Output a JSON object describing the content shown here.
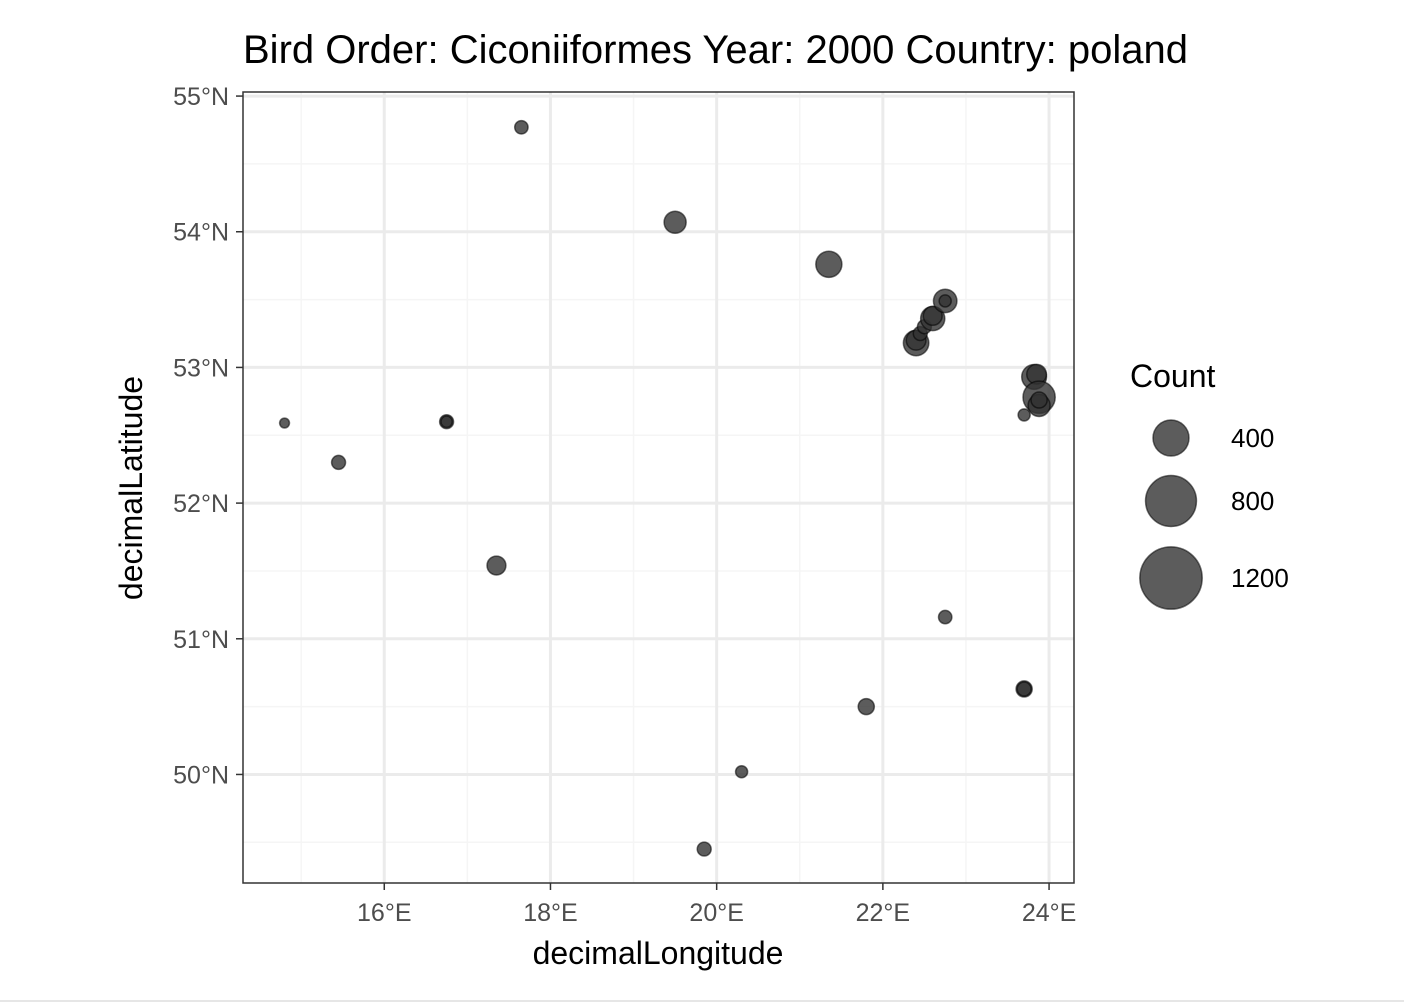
{
  "chart_data": {
    "type": "scatter",
    "title": "Bird Order: Ciconiiformes Year: 2000 Country: poland",
    "xlabel": "decimalLongitude",
    "ylabel": "decimalLatitude",
    "xlim": [
      14.3,
      24.3
    ],
    "ylim": [
      49.2,
      55.03
    ],
    "x_ticks": [
      16,
      18,
      20,
      22,
      24
    ],
    "x_tick_labels": [
      "16°E",
      "18°E",
      "20°E",
      "22°E",
      "24°E"
    ],
    "y_ticks": [
      50,
      51,
      52,
      53,
      54,
      55
    ],
    "y_tick_labels": [
      "50°N",
      "51°N",
      "52°N",
      "53°N",
      "54°N",
      "55°N"
    ],
    "grid": true,
    "point_color": "#333333",
    "point_opacity": 0.8,
    "legend": {
      "title": "Count",
      "placement": "right",
      "entries": [
        {
          "label": "400",
          "value": 400
        },
        {
          "label": "800",
          "value": 800
        },
        {
          "label": "1200",
          "value": 1200
        }
      ]
    },
    "points": [
      {
        "x": 14.8,
        "y": 52.59,
        "count": 30
      },
      {
        "x": 15.45,
        "y": 52.3,
        "count": 60
      },
      {
        "x": 16.75,
        "y": 52.6,
        "count": 60
      },
      {
        "x": 16.75,
        "y": 52.6,
        "count": 40
      },
      {
        "x": 17.35,
        "y": 51.54,
        "count": 110
      },
      {
        "x": 17.65,
        "y": 54.77,
        "count": 55
      },
      {
        "x": 19.5,
        "y": 54.07,
        "count": 150
      },
      {
        "x": 19.85,
        "y": 49.45,
        "count": 60
      },
      {
        "x": 20.3,
        "y": 50.02,
        "count": 45
      },
      {
        "x": 21.35,
        "y": 53.76,
        "count": 210
      },
      {
        "x": 21.8,
        "y": 50.5,
        "count": 80
      },
      {
        "x": 22.4,
        "y": 53.18,
        "count": 200
      },
      {
        "x": 22.4,
        "y": 53.2,
        "count": 120
      },
      {
        "x": 22.45,
        "y": 53.25,
        "count": 60
      },
      {
        "x": 22.5,
        "y": 53.3,
        "count": 60
      },
      {
        "x": 22.6,
        "y": 53.36,
        "count": 180
      },
      {
        "x": 22.6,
        "y": 53.38,
        "count": 110
      },
      {
        "x": 22.75,
        "y": 53.49,
        "count": 170
      },
      {
        "x": 22.75,
        "y": 53.49,
        "count": 45
      },
      {
        "x": 22.75,
        "y": 51.16,
        "count": 55
      },
      {
        "x": 23.7,
        "y": 52.65,
        "count": 45
      },
      {
        "x": 23.7,
        "y": 50.63,
        "count": 80
      },
      {
        "x": 23.7,
        "y": 50.63,
        "count": 60
      },
      {
        "x": 23.82,
        "y": 52.93,
        "count": 190
      },
      {
        "x": 23.85,
        "y": 52.95,
        "count": 120
      },
      {
        "x": 23.88,
        "y": 52.78,
        "count": 320
      },
      {
        "x": 23.88,
        "y": 52.72,
        "count": 150
      },
      {
        "x": 23.88,
        "y": 52.76,
        "count": 80
      }
    ]
  }
}
